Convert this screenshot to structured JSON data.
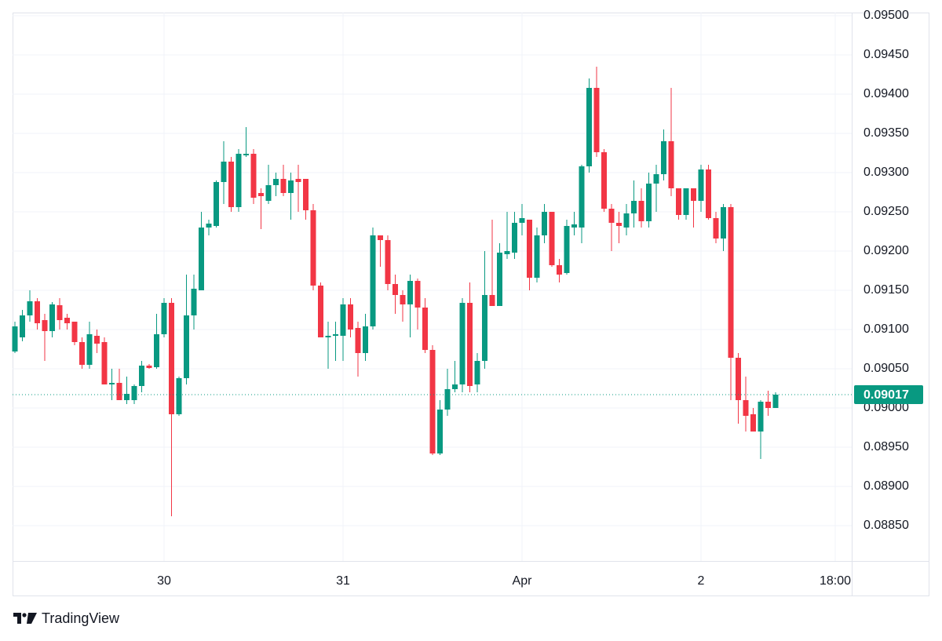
{
  "chart_data": {
    "type": "candlestick",
    "categories": [
      null,
      null,
      null,
      null,
      null,
      null,
      null,
      null,
      null,
      null,
      null,
      null,
      null,
      null,
      null,
      null,
      null,
      null,
      null,
      null,
      "30",
      null,
      null,
      null,
      null,
      null,
      null,
      null,
      null,
      null,
      null,
      null,
      null,
      null,
      null,
      null,
      null,
      null,
      null,
      null,
      null,
      null,
      null,
      null,
      "31",
      null,
      null,
      null,
      null,
      null,
      null,
      null,
      null,
      null,
      null,
      null,
      null,
      null,
      null,
      null,
      null,
      null,
      null,
      null,
      null,
      null,
      null,
      null,
      "Apr",
      null,
      null,
      null,
      null,
      null,
      null,
      null,
      null,
      null,
      null,
      null,
      null,
      null,
      null,
      null,
      null,
      null,
      null,
      null,
      null,
      null,
      null,
      null,
      "2",
      null,
      null,
      null,
      null,
      null,
      null,
      null,
      null,
      null,
      null,
      null,
      null,
      null,
      null,
      null,
      null,
      null,
      "18:00"
    ],
    "open": [
      0.09072,
      0.0909,
      0.09118,
      0.09136,
      0.09112,
      0.09098,
      0.09131,
      0.09115,
      0.0911,
      0.09084,
      0.09055,
      0.09092,
      0.09084,
      0.0903,
      0.09032,
      0.0901,
      0.0901,
      0.09028,
      0.09054,
      0.09052,
      0.09094,
      0.09134,
      0.08992,
      0.09038,
      0.09118,
      0.0915,
      0.0923,
      0.09232,
      0.09288,
      0.09314,
      0.09256,
      0.09322,
      0.09324,
      0.09274,
      0.09264,
      0.09284,
      0.09292,
      0.09274,
      0.09292,
      0.09292,
      0.09252,
      0.09156,
      0.0909,
      0.09092,
      0.09092,
      0.09132,
      0.09102,
      0.0907,
      0.09104,
      0.0922,
      0.09214,
      0.09158,
      0.09144,
      0.09132,
      0.09162,
      0.09128,
      0.09074,
      0.08942,
      0.08998,
      0.09024,
      0.0903,
      0.09134,
      0.0903,
      0.0906,
      0.09144,
      0.0913,
      0.09196,
      0.09198,
      0.09236,
      0.0924,
      0.09166,
      0.0922,
      0.0925,
      0.09182,
      0.09172,
      0.0923,
      0.0923,
      0.09308,
      0.09408,
      0.09326,
      0.09254,
      0.09236,
      0.0923,
      0.09248,
      0.09264,
      0.09238,
      0.09286,
      0.09298,
      0.0934,
      0.0928,
      0.09246,
      0.0928,
      0.09264,
      0.09304,
      0.09242,
      0.09216,
      0.09256,
      0.09064,
      0.0901,
      0.08992,
      0.0897,
      0.09008,
      0.09,
      null,
      null,
      null,
      null,
      null,
      null,
      null,
      null
    ],
    "high": [
      0.0911,
      0.09125,
      0.0915,
      0.0914,
      0.0912,
      0.09135,
      0.0914,
      0.0912,
      0.0911,
      0.0909,
      0.0911,
      0.091,
      0.0909,
      0.0905,
      0.0905,
      0.0904,
      0.0903,
      0.0906,
      0.09056,
      0.0912,
      0.0914,
      0.0914,
      0.0904,
      0.0917,
      0.0917,
      0.0925,
      0.0924,
      0.0929,
      0.0934,
      0.0932,
      0.0933,
      0.09358,
      0.0933,
      0.0928,
      0.0931,
      0.093,
      0.0931,
      0.093,
      0.0931,
      0.0929,
      0.0926,
      0.0916,
      0.0911,
      0.0911,
      0.0914,
      0.0914,
      0.0911,
      0.0912,
      0.0923,
      0.0922,
      0.0922,
      0.0917,
      0.0915,
      0.0917,
      0.09165,
      0.0914,
      0.0908,
      0.0901,
      0.0905,
      0.0906,
      0.0914,
      0.0916,
      0.0907,
      0.092,
      0.0924,
      0.0921,
      0.0925,
      0.0925,
      0.0926,
      0.0924,
      0.0923,
      0.0926,
      0.0925,
      0.0919,
      0.0924,
      0.0925,
      0.0931,
      0.0942,
      0.09435,
      0.0933,
      0.0926,
      0.0925,
      0.0926,
      0.0929,
      0.0928,
      0.093,
      0.0931,
      0.09355,
      0.09408,
      0.0928,
      0.0928,
      0.0928,
      0.0931,
      0.0931,
      0.0925,
      0.0926,
      0.0926,
      0.0907,
      0.0904,
      0.09,
      0.0901,
      0.09022,
      0.0902,
      null,
      null,
      null,
      null,
      null,
      null,
      null,
      null
    ],
    "low": [
      0.0907,
      0.09085,
      0.0911,
      0.091,
      0.0906,
      0.0909,
      0.091,
      0.091,
      0.0908,
      0.0905,
      0.0905,
      0.0907,
      0.0903,
      0.0901,
      0.0901,
      0.09005,
      0.09005,
      0.0902,
      0.0905,
      0.0905,
      0.0909,
      0.08862,
      0.0899,
      0.0903,
      0.091,
      0.0915,
      0.0922,
      0.0923,
      0.0926,
      0.0925,
      0.0925,
      0.0932,
      0.0926,
      0.09228,
      0.0926,
      0.0927,
      0.0927,
      0.0924,
      0.0925,
      0.0924,
      0.0915,
      0.0909,
      0.0905,
      0.0906,
      0.0906,
      0.0909,
      0.0904,
      0.0906,
      0.091,
      0.0918,
      0.0915,
      0.0912,
      0.0911,
      0.0909,
      0.091,
      0.0907,
      0.0894,
      0.0894,
      0.0899,
      0.0902,
      0.0902,
      0.0902,
      0.0902,
      0.0905,
      0.0913,
      0.0913,
      0.0919,
      0.0919,
      0.0922,
      0.0915,
      0.0916,
      0.0921,
      0.0918,
      0.0916,
      0.0917,
      0.0922,
      0.0921,
      0.093,
      0.0932,
      0.0925,
      0.092,
      0.0921,
      0.0922,
      0.0923,
      0.0923,
      0.0923,
      0.0925,
      0.0929,
      0.0927,
      0.0924,
      0.0924,
      0.0923,
      0.0925,
      0.0924,
      0.0921,
      0.092,
      0.0901,
      0.0898,
      0.0897,
      0.0897,
      0.08935,
      0.0899,
      0.09,
      null,
      null,
      null,
      null,
      null,
      null,
      null,
      null
    ],
    "close": [
      0.09104,
      0.09118,
      0.09136,
      0.09108,
      0.09098,
      0.09132,
      0.09112,
      0.09108,
      0.09084,
      0.09055,
      0.09094,
      0.09082,
      0.0903,
      0.09032,
      0.0901,
      0.09018,
      0.09028,
      0.09054,
      0.09051,
      0.09094,
      0.09134,
      0.08992,
      0.09038,
      0.09118,
      0.09152,
      0.0923,
      0.09235,
      0.09288,
      0.09314,
      0.09256,
      0.09324,
      0.09324,
      0.09268,
      0.0927,
      0.09284,
      0.09292,
      0.09274,
      0.0929,
      0.09288,
      0.09252,
      0.09156,
      0.0909,
      0.09092,
      0.09094,
      0.09132,
      0.091,
      0.0907,
      0.09104,
      0.0922,
      0.09214,
      0.09158,
      0.09144,
      0.09132,
      0.09162,
      0.09128,
      0.09074,
      0.08942,
      0.08998,
      0.09024,
      0.0903,
      0.09134,
      0.09028,
      0.0906,
      0.09144,
      0.0913,
      0.09198,
      0.092,
      0.09236,
      0.09242,
      0.09166,
      0.0922,
      0.0925,
      0.09182,
      0.0917,
      0.09232,
      0.09234,
      0.09308,
      0.09408,
      0.09326,
      0.09254,
      0.09236,
      0.09232,
      0.09248,
      0.09264,
      0.09238,
      0.09286,
      0.09298,
      0.0934,
      0.0928,
      0.09246,
      0.0928,
      0.09264,
      0.09304,
      0.09242,
      0.09216,
      0.09256,
      0.09064,
      0.0901,
      0.0899,
      0.0897,
      0.09008,
      0.09,
      0.09017,
      null,
      null,
      null,
      null,
      null,
      null,
      null,
      null
    ],
    "up_color": "#089981",
    "down_color": "#f23645",
    "ylim": [
      0.08805,
      0.09502
    ],
    "yticks": [
      {
        "value": 0.0885,
        "label": "0.08850"
      },
      {
        "value": 0.089,
        "label": "0.08900"
      },
      {
        "value": 0.0895,
        "label": "0.08950"
      },
      {
        "value": 0.09,
        "label": "0.09000"
      },
      {
        "value": 0.0905,
        "label": "0.09050"
      },
      {
        "value": 0.091,
        "label": "0.09100"
      },
      {
        "value": 0.0915,
        "label": "0.09150"
      },
      {
        "value": 0.092,
        "label": "0.09200"
      },
      {
        "value": 0.0925,
        "label": "0.09250"
      },
      {
        "value": 0.093,
        "label": "0.09300"
      },
      {
        "value": 0.0935,
        "label": "0.09350"
      },
      {
        "value": 0.094,
        "label": "0.09400"
      },
      {
        "value": 0.0945,
        "label": "0.09450"
      },
      {
        "value": 0.095,
        "label": "0.09500"
      }
    ],
    "grid": true,
    "last_price": {
      "value": 0.09017,
      "label": "0.09017"
    }
  },
  "brand": "TradingView"
}
